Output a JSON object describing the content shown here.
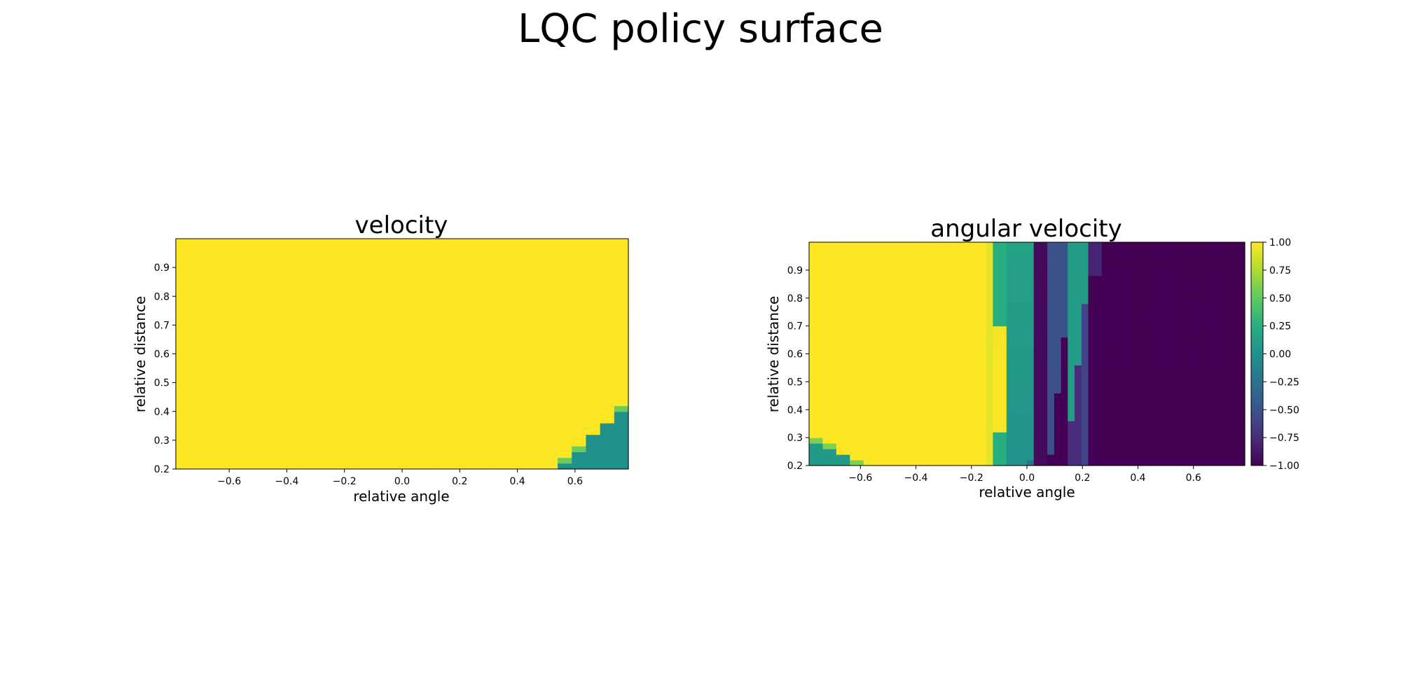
{
  "figure": {
    "title": "LQC policy surface"
  },
  "chart_data": [
    {
      "type": "heatmap",
      "title": "velocity",
      "xlabel": "relative angle",
      "ylabel": "relative distance",
      "xlim": [
        -0.785,
        0.785
      ],
      "ylim": [
        0.2,
        1.0
      ],
      "xticks": [
        -0.6,
        -0.4,
        -0.2,
        0.0,
        0.2,
        0.4,
        0.6
      ],
      "xtick_labels": [
        "−0.6",
        "−0.4",
        "−0.2",
        "0.0",
        "0.2",
        "0.4",
        "0.6"
      ],
      "yticks": [
        0.2,
        0.3,
        0.4,
        0.5,
        0.6,
        0.7,
        0.8,
        0.9
      ],
      "ytick_labels": [
        "0.2",
        "0.3",
        "0.4",
        "0.5",
        "0.6",
        "0.7",
        "0.8",
        "0.9"
      ],
      "colormap": "viridis",
      "value_range": [
        -1.0,
        1.0
      ],
      "grid": false,
      "colorbar": false,
      "description_of_values": {
        "default_value": 1.0,
        "low_region_value": 0.0,
        "boundary_points": [
          [
            0.48,
            0.2
          ],
          [
            0.53,
            0.24
          ],
          [
            0.58,
            0.28
          ],
          [
            0.63,
            0.33
          ],
          [
            0.68,
            0.37
          ],
          [
            0.73,
            0.42
          ],
          [
            0.785,
            0.42
          ]
        ]
      }
    },
    {
      "type": "heatmap",
      "title": "angular velocity",
      "xlabel": "relative angle",
      "ylabel": "relative distance",
      "xlim": [
        -0.785,
        0.785
      ],
      "ylim": [
        0.2,
        1.0
      ],
      "xticks": [
        -0.6,
        -0.4,
        -0.2,
        0.0,
        0.2,
        0.4,
        0.6
      ],
      "xtick_labels": [
        "−0.6",
        "−0.4",
        "−0.2",
        "0.0",
        "0.2",
        "0.4",
        "0.6"
      ],
      "yticks": [
        0.2,
        0.3,
        0.4,
        0.5,
        0.6,
        0.7,
        0.8,
        0.9
      ],
      "ytick_labels": [
        "0.2",
        "0.3",
        "0.4",
        "0.5",
        "0.6",
        "0.7",
        "0.8",
        "0.9"
      ],
      "colormap": "viridis",
      "value_range": [
        -1.0,
        1.0
      ],
      "grid": false,
      "colorbar": true,
      "colorbar_ticks": [
        1.0,
        0.75,
        0.5,
        0.25,
        0.0,
        -0.25,
        -0.5,
        -0.75,
        -1.0
      ],
      "colorbar_tick_labels": [
        "1.00",
        "0.75",
        "0.50",
        "0.25",
        "0.00",
        "−0.25",
        "−0.50",
        "−0.75",
        "−1.00"
      ],
      "description_of_values": {
        "yellow_region_x_upper": -0.15,
        "teal_region_x": [
          -0.1,
          0.04
        ],
        "dark_region_start_x": 0.23,
        "bottom_left_teal_steps": [
          [
            -0.785,
            0.3
          ],
          [
            -0.73,
            0.28
          ],
          [
            -0.68,
            0.25
          ],
          [
            -0.63,
            0.22
          ],
          [
            -0.58,
            0.2
          ]
        ]
      }
    }
  ]
}
